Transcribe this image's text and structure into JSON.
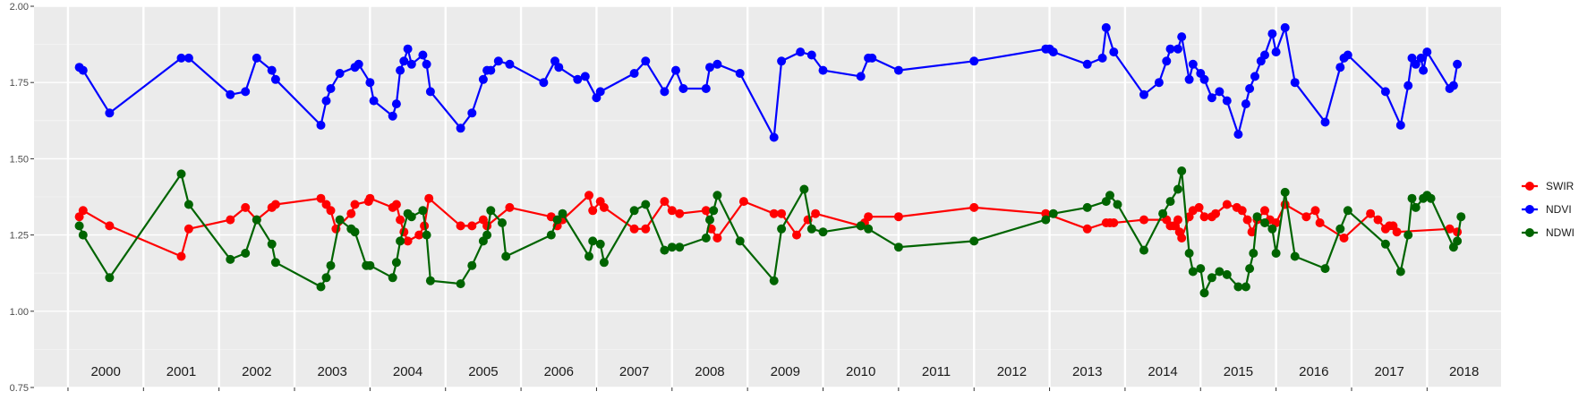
{
  "chart_data": {
    "type": "line",
    "xlabel": "",
    "ylabel": "",
    "ylim": [
      0.75,
      2.0
    ],
    "y_ticks": [
      "0.75",
      "1.00",
      "1.25",
      "1.50",
      "1.75",
      "2.00"
    ],
    "y_tick_values": [
      0.75,
      1.0,
      1.25,
      1.5,
      1.75,
      2.0
    ],
    "year_labels": [
      "2000",
      "2001",
      "2002",
      "2003",
      "2004",
      "2005",
      "2006",
      "2007",
      "2008",
      "2009",
      "2010",
      "2011",
      "2012",
      "2013",
      "2014",
      "2015",
      "2016",
      "2017",
      "2018"
    ],
    "x_range": [
      1999.55,
      2018.98
    ],
    "grid": true,
    "legend_position": "right",
    "series": [
      {
        "name": "SWIR",
        "color": "#ff0000",
        "points": [
          [
            2000.15,
            1.31
          ],
          [
            2000.2,
            1.33
          ],
          [
            2000.55,
            1.28
          ],
          [
            2001.5,
            1.18
          ],
          [
            2001.6,
            1.27
          ],
          [
            2002.15,
            1.3
          ],
          [
            2002.35,
            1.34
          ],
          [
            2002.5,
            1.3
          ],
          [
            2002.7,
            1.34
          ],
          [
            2002.75,
            1.35
          ],
          [
            2003.35,
            1.37
          ],
          [
            2003.42,
            1.35
          ],
          [
            2003.48,
            1.33
          ],
          [
            2003.55,
            1.27
          ],
          [
            2003.75,
            1.32
          ],
          [
            2003.8,
            1.35
          ],
          [
            2003.98,
            1.36
          ],
          [
            2004.0,
            1.37
          ],
          [
            2004.3,
            1.34
          ],
          [
            2004.35,
            1.35
          ],
          [
            2004.4,
            1.3
          ],
          [
            2004.45,
            1.26
          ],
          [
            2004.5,
            1.23
          ],
          [
            2004.65,
            1.25
          ],
          [
            2004.72,
            1.28
          ],
          [
            2004.78,
            1.37
          ],
          [
            2005.2,
            1.28
          ],
          [
            2005.35,
            1.28
          ],
          [
            2005.5,
            1.3
          ],
          [
            2005.55,
            1.28
          ],
          [
            2005.85,
            1.34
          ],
          [
            2006.4,
            1.31
          ],
          [
            2006.48,
            1.28
          ],
          [
            2006.55,
            1.3
          ],
          [
            2006.9,
            1.38
          ],
          [
            2006.95,
            1.33
          ],
          [
            2007.05,
            1.36
          ],
          [
            2007.1,
            1.34
          ],
          [
            2007.5,
            1.27
          ],
          [
            2007.65,
            1.27
          ],
          [
            2007.9,
            1.36
          ],
          [
            2008.0,
            1.33
          ],
          [
            2008.1,
            1.32
          ],
          [
            2008.45,
            1.33
          ],
          [
            2008.52,
            1.27
          ],
          [
            2008.6,
            1.24
          ],
          [
            2008.95,
            1.36
          ],
          [
            2009.35,
            1.32
          ],
          [
            2009.45,
            1.32
          ],
          [
            2009.65,
            1.25
          ],
          [
            2009.8,
            1.3
          ],
          [
            2009.9,
            1.32
          ],
          [
            2010.5,
            1.28
          ],
          [
            2010.55,
            1.29
          ],
          [
            2010.6,
            1.31
          ],
          [
            2011.0,
            1.31
          ],
          [
            2012.0,
            1.34
          ],
          [
            2012.95,
            1.32
          ],
          [
            2013.5,
            1.27
          ],
          [
            2013.75,
            1.29
          ],
          [
            2013.8,
            1.29
          ],
          [
            2013.85,
            1.29
          ],
          [
            2014.25,
            1.3
          ],
          [
            2014.55,
            1.3
          ],
          [
            2014.6,
            1.28
          ],
          [
            2014.65,
            1.28
          ],
          [
            2014.7,
            1.3
          ],
          [
            2014.72,
            1.26
          ],
          [
            2014.75,
            1.24
          ],
          [
            2014.85,
            1.31
          ],
          [
            2014.9,
            1.33
          ],
          [
            2014.98,
            1.34
          ],
          [
            2015.05,
            1.31
          ],
          [
            2015.15,
            1.31
          ],
          [
            2015.2,
            1.32
          ],
          [
            2015.35,
            1.35
          ],
          [
            2015.48,
            1.34
          ],
          [
            2015.55,
            1.33
          ],
          [
            2015.62,
            1.3
          ],
          [
            2015.68,
            1.26
          ],
          [
            2015.75,
            1.3
          ],
          [
            2015.85,
            1.33
          ],
          [
            2015.92,
            1.3
          ],
          [
            2016.0,
            1.29
          ],
          [
            2016.12,
            1.35
          ],
          [
            2016.4,
            1.31
          ],
          [
            2016.52,
            1.33
          ],
          [
            2016.58,
            1.29
          ],
          [
            2016.9,
            1.24
          ],
          [
            2017.25,
            1.32
          ],
          [
            2017.35,
            1.3
          ],
          [
            2017.45,
            1.27
          ],
          [
            2017.5,
            1.28
          ],
          [
            2017.55,
            1.28
          ],
          [
            2017.6,
            1.26
          ],
          [
            2018.3,
            1.27
          ],
          [
            2018.4,
            1.26
          ]
        ]
      },
      {
        "name": "NDVI",
        "color": "#0000ff",
        "points": [
          [
            2000.15,
            1.8
          ],
          [
            2000.2,
            1.79
          ],
          [
            2000.55,
            1.65
          ],
          [
            2001.5,
            1.83
          ],
          [
            2001.6,
            1.83
          ],
          [
            2002.15,
            1.71
          ],
          [
            2002.35,
            1.72
          ],
          [
            2002.5,
            1.83
          ],
          [
            2002.7,
            1.79
          ],
          [
            2002.75,
            1.76
          ],
          [
            2003.35,
            1.61
          ],
          [
            2003.42,
            1.69
          ],
          [
            2003.48,
            1.73
          ],
          [
            2003.6,
            1.78
          ],
          [
            2003.8,
            1.8
          ],
          [
            2003.85,
            1.81
          ],
          [
            2004.0,
            1.75
          ],
          [
            2004.05,
            1.69
          ],
          [
            2004.3,
            1.64
          ],
          [
            2004.35,
            1.68
          ],
          [
            2004.4,
            1.79
          ],
          [
            2004.45,
            1.82
          ],
          [
            2004.5,
            1.86
          ],
          [
            2004.55,
            1.81
          ],
          [
            2004.7,
            1.84
          ],
          [
            2004.75,
            1.81
          ],
          [
            2004.8,
            1.72
          ],
          [
            2005.2,
            1.6
          ],
          [
            2005.35,
            1.65
          ],
          [
            2005.5,
            1.76
          ],
          [
            2005.55,
            1.79
          ],
          [
            2005.6,
            1.79
          ],
          [
            2005.7,
            1.82
          ],
          [
            2005.85,
            1.81
          ],
          [
            2006.3,
            1.75
          ],
          [
            2006.45,
            1.82
          ],
          [
            2006.5,
            1.8
          ],
          [
            2006.75,
            1.76
          ],
          [
            2006.85,
            1.77
          ],
          [
            2007.0,
            1.7
          ],
          [
            2007.05,
            1.72
          ],
          [
            2007.5,
            1.78
          ],
          [
            2007.65,
            1.82
          ],
          [
            2007.9,
            1.72
          ],
          [
            2008.05,
            1.79
          ],
          [
            2008.15,
            1.73
          ],
          [
            2008.45,
            1.73
          ],
          [
            2008.5,
            1.8
          ],
          [
            2008.6,
            1.81
          ],
          [
            2008.9,
            1.78
          ],
          [
            2009.35,
            1.57
          ],
          [
            2009.45,
            1.82
          ],
          [
            2009.7,
            1.85
          ],
          [
            2009.85,
            1.84
          ],
          [
            2010.0,
            1.79
          ],
          [
            2010.5,
            1.77
          ],
          [
            2010.6,
            1.83
          ],
          [
            2010.65,
            1.83
          ],
          [
            2011.0,
            1.79
          ],
          [
            2012.0,
            1.82
          ],
          [
            2012.95,
            1.86
          ],
          [
            2013.0,
            1.86
          ],
          [
            2013.05,
            1.85
          ],
          [
            2013.5,
            1.81
          ],
          [
            2013.7,
            1.83
          ],
          [
            2013.75,
            1.93
          ],
          [
            2013.85,
            1.85
          ],
          [
            2014.25,
            1.71
          ],
          [
            2014.45,
            1.75
          ],
          [
            2014.55,
            1.82
          ],
          [
            2014.6,
            1.86
          ],
          [
            2014.7,
            1.86
          ],
          [
            2014.75,
            1.9
          ],
          [
            2014.85,
            1.76
          ],
          [
            2014.9,
            1.81
          ],
          [
            2015.0,
            1.78
          ],
          [
            2015.05,
            1.76
          ],
          [
            2015.15,
            1.7
          ],
          [
            2015.25,
            1.72
          ],
          [
            2015.35,
            1.69
          ],
          [
            2015.5,
            1.58
          ],
          [
            2015.6,
            1.68
          ],
          [
            2015.65,
            1.73
          ],
          [
            2015.72,
            1.77
          ],
          [
            2015.8,
            1.82
          ],
          [
            2015.85,
            1.84
          ],
          [
            2015.95,
            1.91
          ],
          [
            2016.0,
            1.85
          ],
          [
            2016.12,
            1.93
          ],
          [
            2016.25,
            1.75
          ],
          [
            2016.65,
            1.62
          ],
          [
            2016.85,
            1.8
          ],
          [
            2016.9,
            1.83
          ],
          [
            2016.95,
            1.84
          ],
          [
            2017.45,
            1.72
          ],
          [
            2017.65,
            1.61
          ],
          [
            2017.75,
            1.74
          ],
          [
            2017.8,
            1.83
          ],
          [
            2017.85,
            1.81
          ],
          [
            2017.92,
            1.83
          ],
          [
            2017.95,
            1.79
          ],
          [
            2018.0,
            1.85
          ],
          [
            2018.3,
            1.73
          ],
          [
            2018.35,
            1.74
          ],
          [
            2018.4,
            1.81
          ]
        ]
      },
      {
        "name": "NDWI",
        "color": "#006400",
        "points": [
          [
            2000.15,
            1.28
          ],
          [
            2000.2,
            1.25
          ],
          [
            2000.55,
            1.11
          ],
          [
            2001.5,
            1.45
          ],
          [
            2001.6,
            1.35
          ],
          [
            2002.15,
            1.17
          ],
          [
            2002.35,
            1.19
          ],
          [
            2002.5,
            1.3
          ],
          [
            2002.7,
            1.22
          ],
          [
            2002.75,
            1.16
          ],
          [
            2003.35,
            1.08
          ],
          [
            2003.42,
            1.11
          ],
          [
            2003.48,
            1.15
          ],
          [
            2003.6,
            1.3
          ],
          [
            2003.75,
            1.27
          ],
          [
            2003.8,
            1.26
          ],
          [
            2003.95,
            1.15
          ],
          [
            2004.0,
            1.15
          ],
          [
            2004.3,
            1.11
          ],
          [
            2004.35,
            1.16
          ],
          [
            2004.4,
            1.23
          ],
          [
            2004.5,
            1.32
          ],
          [
            2004.55,
            1.31
          ],
          [
            2004.7,
            1.33
          ],
          [
            2004.75,
            1.25
          ],
          [
            2004.8,
            1.1
          ],
          [
            2005.2,
            1.09
          ],
          [
            2005.35,
            1.15
          ],
          [
            2005.5,
            1.23
          ],
          [
            2005.55,
            1.25
          ],
          [
            2005.6,
            1.33
          ],
          [
            2005.75,
            1.29
          ],
          [
            2005.8,
            1.18
          ],
          [
            2006.4,
            1.25
          ],
          [
            2006.48,
            1.3
          ],
          [
            2006.55,
            1.32
          ],
          [
            2006.9,
            1.18
          ],
          [
            2006.95,
            1.23
          ],
          [
            2007.05,
            1.22
          ],
          [
            2007.1,
            1.16
          ],
          [
            2007.5,
            1.33
          ],
          [
            2007.65,
            1.35
          ],
          [
            2007.9,
            1.2
          ],
          [
            2008.0,
            1.21
          ],
          [
            2008.1,
            1.21
          ],
          [
            2008.45,
            1.24
          ],
          [
            2008.5,
            1.3
          ],
          [
            2008.55,
            1.33
          ],
          [
            2008.6,
            1.38
          ],
          [
            2008.9,
            1.23
          ],
          [
            2009.35,
            1.1
          ],
          [
            2009.45,
            1.27
          ],
          [
            2009.75,
            1.4
          ],
          [
            2009.85,
            1.27
          ],
          [
            2010.0,
            1.26
          ],
          [
            2010.5,
            1.28
          ],
          [
            2010.6,
            1.27
          ],
          [
            2011.0,
            1.21
          ],
          [
            2012.0,
            1.23
          ],
          [
            2012.95,
            1.3
          ],
          [
            2013.05,
            1.32
          ],
          [
            2013.5,
            1.34
          ],
          [
            2013.75,
            1.36
          ],
          [
            2013.8,
            1.38
          ],
          [
            2013.9,
            1.35
          ],
          [
            2014.25,
            1.2
          ],
          [
            2014.5,
            1.32
          ],
          [
            2014.6,
            1.36
          ],
          [
            2014.7,
            1.4
          ],
          [
            2014.75,
            1.46
          ],
          [
            2014.85,
            1.19
          ],
          [
            2014.9,
            1.13
          ],
          [
            2015.0,
            1.14
          ],
          [
            2015.05,
            1.06
          ],
          [
            2015.15,
            1.11
          ],
          [
            2015.25,
            1.13
          ],
          [
            2015.35,
            1.12
          ],
          [
            2015.5,
            1.08
          ],
          [
            2015.6,
            1.08
          ],
          [
            2015.65,
            1.14
          ],
          [
            2015.7,
            1.19
          ],
          [
            2015.75,
            1.31
          ],
          [
            2015.85,
            1.29
          ],
          [
            2015.95,
            1.27
          ],
          [
            2016.0,
            1.19
          ],
          [
            2016.12,
            1.39
          ],
          [
            2016.25,
            1.18
          ],
          [
            2016.65,
            1.14
          ],
          [
            2016.85,
            1.27
          ],
          [
            2016.95,
            1.33
          ],
          [
            2017.45,
            1.22
          ],
          [
            2017.65,
            1.13
          ],
          [
            2017.75,
            1.25
          ],
          [
            2017.8,
            1.37
          ],
          [
            2017.85,
            1.34
          ],
          [
            2017.95,
            1.37
          ],
          [
            2018.0,
            1.38
          ],
          [
            2018.05,
            1.37
          ],
          [
            2018.35,
            1.21
          ],
          [
            2018.4,
            1.23
          ],
          [
            2018.45,
            1.31
          ]
        ]
      }
    ]
  }
}
